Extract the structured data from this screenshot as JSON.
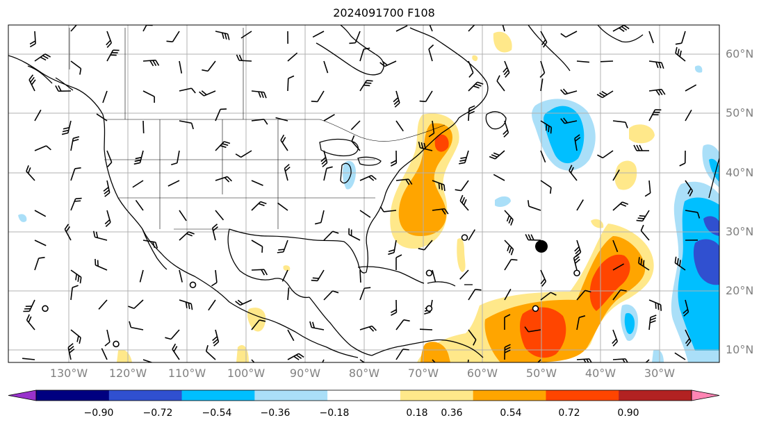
{
  "title": "2024091700 F108",
  "map": {
    "latitude_labels": [
      "60°N",
      "50°N",
      "40°N",
      "30°N",
      "20°N",
      "10°N"
    ],
    "longitude_labels": [
      "130°W",
      "120°W",
      "110°W",
      "100°W",
      "90°W",
      "80°W",
      "70°W",
      "60°W",
      "50°W",
      "40°W",
      "30°W"
    ],
    "gridlines": true,
    "storm_marker": {
      "lon": -50,
      "lat": 27.5
    },
    "calm_circles": [
      {
        "lon": -122,
        "lat": 11
      },
      {
        "lon": -109,
        "lat": 21
      },
      {
        "lon": -134,
        "lat": 17
      },
      {
        "lon": -63,
        "lat": 29
      },
      {
        "lon": -69,
        "lat": 23
      },
      {
        "lon": -69,
        "lat": 17
      },
      {
        "lon": -44,
        "lat": 23
      },
      {
        "lon": -51,
        "lat": 17
      }
    ],
    "colors": {
      "land_outline": "#000000",
      "grid": "#b0b0b0",
      "axis_label": "#808080"
    }
  },
  "colorbar": {
    "tick_labels": [
      "−0.90",
      "−0.72",
      "−0.54",
      "−0.36",
      "−0.18",
      "0.18",
      "0.36",
      "0.54",
      "0.72",
      "0.90"
    ],
    "colors": [
      "#9932cc",
      "#000080",
      "#3050d0",
      "#00bfff",
      "#aadff8",
      "#ffffff",
      "#ffe88a",
      "#ffa500",
      "#ff4500",
      "#b22222",
      "#ff85b4"
    ]
  }
}
